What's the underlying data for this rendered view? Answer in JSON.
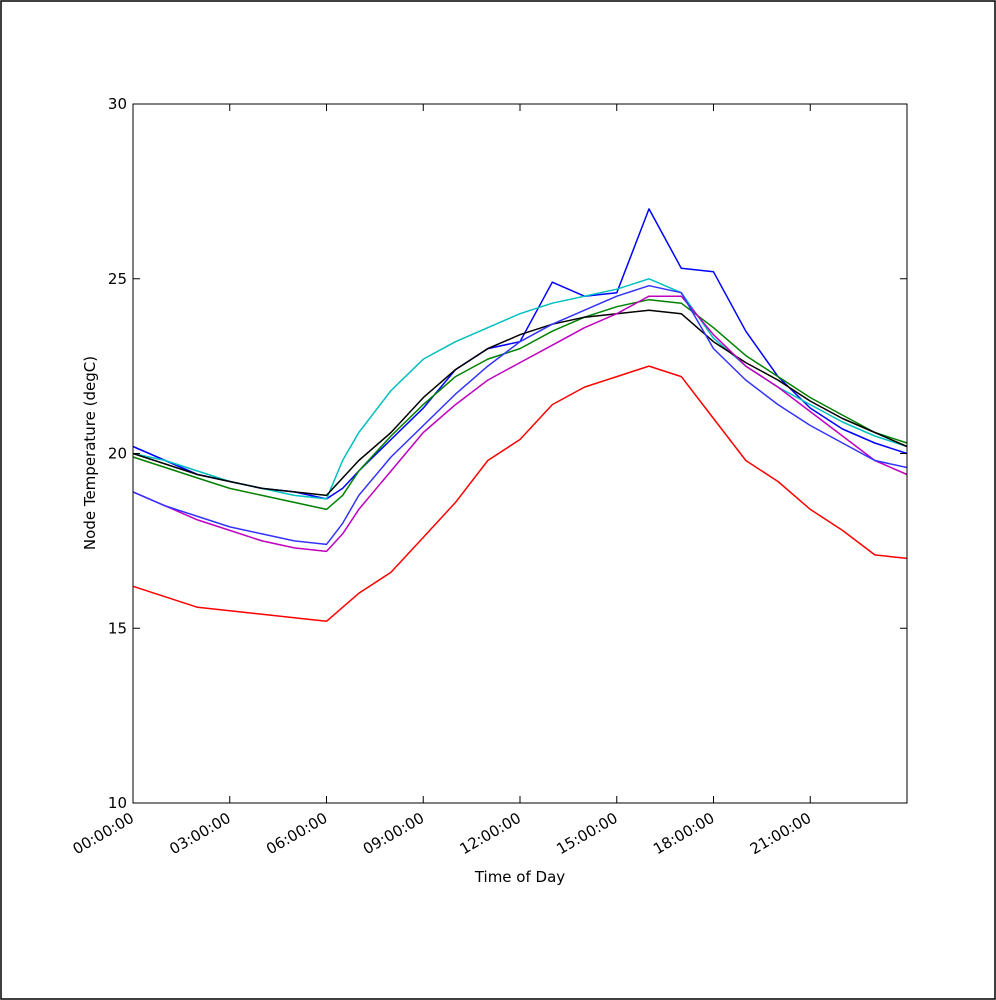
{
  "chart_data": {
    "type": "line",
    "title": "",
    "xlabel": "Time of Day",
    "ylabel": "Node Temperature (degC)",
    "xlim": [
      0,
      24
    ],
    "ylim": [
      10,
      30
    ],
    "grid": false,
    "legend": "none",
    "x_tick_labels": [
      "00:00:00",
      "03:00:00",
      "06:00:00",
      "09:00:00",
      "12:00:00",
      "15:00:00",
      "18:00:00",
      "21:00:00"
    ],
    "x_tick_values": [
      0,
      3,
      6,
      9,
      12,
      15,
      18,
      21
    ],
    "y_tick_labels": [
      "10",
      "15",
      "20",
      "25",
      "30"
    ],
    "y_tick_values": [
      10,
      15,
      20,
      25,
      30
    ],
    "x_hours": [
      0,
      1,
      2,
      3,
      4,
      5,
      6,
      6.5,
      7,
      8,
      9,
      10,
      11,
      12,
      13,
      14,
      15,
      16,
      17,
      18,
      19,
      20,
      21,
      22,
      23,
      24
    ],
    "series": [
      {
        "color": "#ff0000",
        "values": [
          16.2,
          15.9,
          15.6,
          15.5,
          15.4,
          15.3,
          15.2,
          15.6,
          16.0,
          16.6,
          17.6,
          18.6,
          19.8,
          20.4,
          21.4,
          21.9,
          22.2,
          22.5,
          22.2,
          21.0,
          19.8,
          19.2,
          18.4,
          17.8,
          17.1,
          17.0
        ]
      },
      {
        "color": "#0000ff",
        "values": [
          20.2,
          19.8,
          19.4,
          19.2,
          19.0,
          18.9,
          18.7,
          19.0,
          19.5,
          20.4,
          21.3,
          22.4,
          23.0,
          23.2,
          24.9,
          24.5,
          24.6,
          27.0,
          25.3,
          25.2,
          23.5,
          22.2,
          21.3,
          20.7,
          20.3,
          20.0
        ]
      },
      {
        "color": "#00bfbf",
        "values": [
          20.0,
          19.8,
          19.5,
          19.2,
          19.0,
          18.8,
          18.7,
          19.8,
          20.6,
          21.8,
          22.7,
          23.2,
          23.6,
          24.0,
          24.3,
          24.5,
          24.7,
          25.0,
          24.6,
          23.3,
          22.5,
          21.9,
          21.4,
          20.9,
          20.5,
          20.2
        ]
      },
      {
        "color": "#008000",
        "values": [
          19.9,
          19.6,
          19.3,
          19.0,
          18.8,
          18.6,
          18.4,
          18.8,
          19.5,
          20.5,
          21.4,
          22.2,
          22.7,
          23.0,
          23.5,
          23.9,
          24.2,
          24.4,
          24.3,
          23.6,
          22.8,
          22.2,
          21.6,
          21.1,
          20.6,
          20.3
        ]
      },
      {
        "color": "#000000",
        "values": [
          20.0,
          19.7,
          19.4,
          19.2,
          19.0,
          18.9,
          18.8,
          19.3,
          19.8,
          20.6,
          21.6,
          22.4,
          23.0,
          23.4,
          23.7,
          23.9,
          24.0,
          24.1,
          24.0,
          23.2,
          22.6,
          22.1,
          21.5,
          21.0,
          20.6,
          20.2
        ]
      },
      {
        "color": "#bf00bf",
        "values": [
          18.9,
          18.5,
          18.1,
          17.8,
          17.5,
          17.3,
          17.2,
          17.7,
          18.4,
          19.5,
          20.6,
          21.4,
          22.1,
          22.6,
          23.1,
          23.6,
          24.0,
          24.5,
          24.5,
          23.4,
          22.5,
          21.9,
          21.2,
          20.5,
          19.8,
          19.4
        ]
      },
      {
        "color": "#3333ff",
        "values": [
          18.9,
          18.5,
          18.2,
          17.9,
          17.7,
          17.5,
          17.4,
          18.0,
          18.8,
          19.9,
          20.8,
          21.7,
          22.5,
          23.2,
          23.7,
          24.1,
          24.5,
          24.8,
          24.6,
          23.0,
          22.1,
          21.4,
          20.8,
          20.3,
          19.8,
          19.6
        ]
      }
    ]
  }
}
